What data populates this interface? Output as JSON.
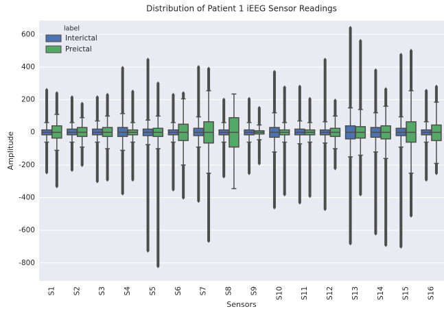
{
  "chart_data": {
    "type": "box",
    "title": "Distribution of Patient 1 iEEG Sensor Readings",
    "x_label": "Sensors",
    "y_label": "Amplitude",
    "categories": [
      "S1",
      "S2",
      "S3",
      "S4",
      "S5",
      "S6",
      "S7",
      "S8",
      "S9",
      "S10",
      "S11",
      "S12",
      "S13",
      "S14",
      "S15",
      "S16"
    ],
    "legend_title": "label",
    "legend": "upper left",
    "grid": true,
    "ylim": [
      -910,
      685
    ],
    "yticks": [
      -800,
      -600,
      -400,
      -200,
      0,
      200,
      400,
      600
    ],
    "series": [
      {
        "name": "Interictal",
        "color": "#4c72b0",
        "boxes": [
          {
            "min": -245,
            "low": -60,
            "q1": -15,
            "median": 0,
            "q3": 15,
            "high": 60,
            "max": 260
          },
          {
            "min": -230,
            "low": -60,
            "q1": -15,
            "median": 0,
            "q3": 20,
            "high": 60,
            "max": 215
          },
          {
            "min": -300,
            "low": -60,
            "q1": -15,
            "median": 0,
            "q3": 20,
            "high": 70,
            "max": 215
          },
          {
            "min": -375,
            "low": -110,
            "q1": -25,
            "median": 0,
            "q3": 30,
            "high": 115,
            "max": 395
          },
          {
            "min": -725,
            "low": -75,
            "q1": -20,
            "median": 0,
            "q3": 20,
            "high": 75,
            "max": 445
          },
          {
            "min": -350,
            "low": -60,
            "q1": -15,
            "median": 0,
            "q3": 15,
            "high": 60,
            "max": 230
          },
          {
            "min": -420,
            "low": -90,
            "q1": -20,
            "median": 0,
            "q3": 25,
            "high": 95,
            "max": 400
          },
          {
            "min": -270,
            "low": -60,
            "q1": -15,
            "median": 0,
            "q3": 15,
            "high": 60,
            "max": 200
          },
          {
            "min": -250,
            "low": -60,
            "q1": -15,
            "median": 0,
            "q3": 15,
            "high": 60,
            "max": 205
          },
          {
            "min": -460,
            "low": -120,
            "q1": -30,
            "median": 0,
            "q3": 30,
            "high": 120,
            "max": 370
          },
          {
            "min": -430,
            "low": -70,
            "q1": -15,
            "median": 0,
            "q3": 20,
            "high": 70,
            "max": 280
          },
          {
            "min": -470,
            "low": -65,
            "q1": -15,
            "median": 0,
            "q3": 15,
            "high": 65,
            "max": 445
          },
          {
            "min": -680,
            "low": -150,
            "q1": -40,
            "median": 0,
            "q3": 40,
            "high": 150,
            "max": 640
          },
          {
            "min": -620,
            "low": -120,
            "q1": -30,
            "median": 0,
            "q3": 30,
            "high": 120,
            "max": 380
          },
          {
            "min": -700,
            "low": -90,
            "q1": -20,
            "median": 0,
            "q3": 25,
            "high": 95,
            "max": 475
          },
          {
            "min": -290,
            "low": -60,
            "q1": -15,
            "median": 0,
            "q3": 15,
            "high": 65,
            "max": 255
          }
        ]
      },
      {
        "name": "Preictal",
        "color": "#55a868",
        "boxes": [
          {
            "min": -330,
            "low": -110,
            "q1": -35,
            "median": 0,
            "q3": 40,
            "high": 110,
            "max": 240
          },
          {
            "min": -200,
            "low": -90,
            "q1": -25,
            "median": 0,
            "q3": 30,
            "high": 90,
            "max": 175
          },
          {
            "min": -290,
            "low": -100,
            "q1": -25,
            "median": 0,
            "q3": 30,
            "high": 100,
            "max": 230
          },
          {
            "min": -290,
            "low": -60,
            "q1": -15,
            "median": 0,
            "q3": 15,
            "high": 60,
            "max": 250
          },
          {
            "min": -820,
            "low": -100,
            "q1": -25,
            "median": 0,
            "q3": 25,
            "high": 100,
            "max": 300
          },
          {
            "min": -400,
            "low": -200,
            "q1": -50,
            "median": 0,
            "q3": 50,
            "high": 205,
            "max": 240
          },
          {
            "min": -665,
            "low": -250,
            "q1": -65,
            "median": 0,
            "q3": 65,
            "high": 255,
            "max": 390
          },
          {
            "min": -345,
            "low": -345,
            "q1": -90,
            "median": 0,
            "q3": 90,
            "high": 235,
            "max": 235
          },
          {
            "min": -190,
            "low": -45,
            "q1": -10,
            "median": 0,
            "q3": 10,
            "high": 45,
            "max": 150
          },
          {
            "min": -380,
            "low": -60,
            "q1": -15,
            "median": 0,
            "q3": 15,
            "high": 60,
            "max": 275
          },
          {
            "min": -390,
            "low": -60,
            "q1": -15,
            "median": 0,
            "q3": 15,
            "high": 60,
            "max": 205
          },
          {
            "min": -220,
            "low": -100,
            "q1": -25,
            "median": 0,
            "q3": 25,
            "high": 100,
            "max": 195
          },
          {
            "min": -380,
            "low": -140,
            "q1": -35,
            "median": 0,
            "q3": 35,
            "high": 140,
            "max": 560
          },
          {
            "min": -690,
            "low": -160,
            "q1": -40,
            "median": 0,
            "q3": 40,
            "high": 160,
            "max": 265
          },
          {
            "min": -510,
            "low": -250,
            "q1": -60,
            "median": 0,
            "q3": 65,
            "high": 255,
            "max": 500
          },
          {
            "min": -250,
            "low": -190,
            "q1": -50,
            "median": 0,
            "q3": 45,
            "high": 185,
            "max": 280
          }
        ]
      }
    ]
  }
}
